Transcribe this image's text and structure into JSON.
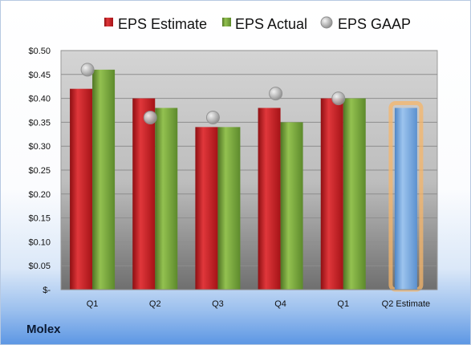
{
  "company": "Molex",
  "colors": {
    "estimate": "#c8181e",
    "actual": "#77a33a",
    "gaap": "#b4b4b4",
    "q2_estimate": "#6ea3da",
    "q2_glow": "#f5b56a"
  },
  "chart_data": {
    "type": "bar",
    "categories": [
      "Q1",
      "Q2",
      "Q3",
      "Q4",
      "Q1",
      "Q2 Estimate"
    ],
    "series": [
      {
        "name": "EPS Estimate",
        "type": "bar",
        "values": [
          0.42,
          0.4,
          0.34,
          0.38,
          0.4,
          null
        ]
      },
      {
        "name": "EPS Actual",
        "type": "bar",
        "values": [
          0.46,
          0.38,
          0.34,
          0.35,
          0.4,
          0.38
        ]
      },
      {
        "name": "EPS GAAP",
        "type": "scatter",
        "values": [
          0.46,
          0.36,
          0.36,
          0.41,
          0.4,
          null
        ]
      }
    ],
    "y_ticks": [
      "$-",
      "$0.05",
      "$0.10",
      "$0.15",
      "$0.20",
      "$0.25",
      "$0.30",
      "$0.35",
      "$0.40",
      "$0.45",
      "$0.50"
    ],
    "ylim": [
      0,
      0.5
    ],
    "grid": true,
    "legend_position": "top"
  }
}
